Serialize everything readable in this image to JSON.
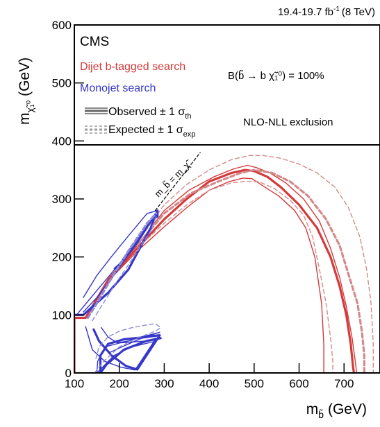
{
  "chart_data": {
    "type": "line",
    "lumi_label": "19.4-19.7 fb",
    "lumi_sup": "-1",
    "lumi_energy": "(8 TeV)",
    "experiment": "CMS",
    "xlabel_main": "m",
    "xlabel_sub": "b̃",
    "xlabel_unit": "(GeV)",
    "ylabel_main": "m",
    "ylabel_sub": "χ̃₁⁰",
    "ylabel_unit": "(GeV)",
    "xlim": [
      100,
      780
    ],
    "ylim": [
      0,
      600
    ],
    "xticks": [
      100,
      200,
      300,
      400,
      500,
      600,
      700
    ],
    "yticks": [
      0,
      100,
      200,
      300,
      400,
      500,
      600
    ],
    "grid": false,
    "legend": {
      "position": "top",
      "dijet_label": "Dijet b-tagged search",
      "monojet_label": "Monojet search",
      "observed_label": "Observed ± 1 σ",
      "observed_sub": "th",
      "expected_label": "Expected ± 1 σ",
      "expected_sub": "exp",
      "branching": "B(b̃ → b χ̃₁⁰) = 100%",
      "exclusion": "NLO-NLL exclusion",
      "diagonal": "m_b̃ = m_χ̃"
    },
    "colors": {
      "dijet": "#d33a3a",
      "monojet": "#3636c8",
      "dijet_light": "#d48a8a",
      "monojet_light": "#8c8cd8"
    },
    "series": [
      {
        "group": "dijet",
        "style": "observed",
        "x": [
          100,
          100,
          125,
          175,
          240,
          300,
          350,
          400,
          450,
          480,
          500,
          530,
          560,
          600,
          640,
          670,
          690,
          705,
          715,
          720,
          722
        ],
        "y": [
          0,
          95,
          95,
          160,
          215,
          265,
          300,
          330,
          345,
          350,
          348,
          338,
          320,
          290,
          250,
          200,
          150,
          100,
          50,
          10,
          0
        ]
      },
      {
        "group": "dijet",
        "style": "observed-band",
        "x": [
          175,
          240,
          300,
          355,
          410,
          455,
          485,
          505,
          535,
          570,
          610,
          645,
          670,
          690,
          705,
          718,
          725,
          728
        ],
        "y": [
          162,
          220,
          280,
          315,
          338,
          352,
          358,
          354,
          345,
          328,
          300,
          262,
          215,
          165,
          115,
          60,
          20,
          0
        ]
      },
      {
        "group": "dijet",
        "style": "observed-band",
        "x": [
          175,
          240,
          300,
          350,
          400,
          445,
          475,
          495,
          525,
          555,
          590,
          615,
          635,
          650,
          655,
          655
        ],
        "y": [
          158,
          210,
          252,
          285,
          315,
          330,
          336,
          335,
          320,
          305,
          280,
          250,
          200,
          120,
          50,
          0
        ]
      },
      {
        "group": "dijet",
        "style": "expected",
        "x": [
          240,
          300,
          360,
          420,
          470,
          500,
          540,
          580,
          620,
          660,
          690,
          710,
          730,
          740,
          745,
          745
        ],
        "y": [
          220,
          275,
          310,
          330,
          345,
          350,
          345,
          330,
          305,
          265,
          220,
          170,
          120,
          70,
          30,
          0
        ]
      },
      {
        "group": "dijet",
        "style": "expected-band",
        "x": [
          240,
          300,
          350,
          400,
          450,
          490,
          520,
          560,
          600,
          640,
          680,
          710,
          735,
          750,
          760,
          765,
          765
        ],
        "y": [
          225,
          290,
          325,
          350,
          368,
          375,
          375,
          370,
          360,
          345,
          320,
          285,
          235,
          180,
          120,
          50,
          0
        ]
      },
      {
        "group": "dijet",
        "style": "expected-band",
        "x": [
          240,
          300,
          350,
          400,
          450,
          480,
          510,
          545,
          580,
          610,
          630,
          645,
          660,
          670,
          675,
          675
        ],
        "y": [
          215,
          258,
          290,
          315,
          328,
          330,
          330,
          318,
          298,
          272,
          235,
          180,
          120,
          60,
          20,
          0
        ]
      },
      {
        "group": "monojet",
        "style": "observed",
        "x": [
          100,
          120,
          175,
          220,
          270,
          285,
          285,
          270,
          240,
          205,
          190
        ],
        "y": [
          100,
          100,
          138,
          178,
          250,
          280,
          270,
          262,
          225,
          190,
          180
        ]
      },
      {
        "group": "monojet",
        "style": "observed-band",
        "x": [
          105,
          150,
          200,
          245,
          280,
          285,
          262,
          222,
          182,
          150,
          120
        ],
        "y": [
          100,
          142,
          188,
          235,
          275,
          280,
          275,
          238,
          200,
          168,
          130
        ]
      },
      {
        "group": "monojet",
        "style": "observed-band",
        "x": [
          120,
          150,
          190,
          225,
          270,
          285
        ],
        "y": [
          105,
          130,
          170,
          210,
          260,
          275
        ]
      },
      {
        "group": "monojet",
        "style": "observed",
        "x": [
          143,
          155,
          183,
          215,
          240,
          290,
          262,
          210,
          175,
          158,
          158,
          172,
          210,
          260,
          292
        ],
        "y": [
          75,
          55,
          30,
          12,
          6,
          65,
          62,
          58,
          50,
          30,
          0,
          15,
          40,
          55,
          60
        ]
      },
      {
        "group": "monojet",
        "style": "observed-band",
        "x": [
          125,
          140,
          168,
          203,
          235,
          282,
          260,
          203,
          168,
          152,
          150,
          163,
          188,
          228,
          282
        ],
        "y": [
          80,
          40,
          20,
          10,
          5,
          60,
          55,
          52,
          45,
          20,
          0,
          10,
          30,
          45,
          55
        ]
      },
      {
        "group": "monojet",
        "style": "observed-band",
        "x": [
          160,
          175,
          195,
          220,
          250,
          290,
          250,
          215,
          192,
          178
        ],
        "y": [
          78,
          62,
          52,
          55,
          62,
          70,
          60,
          48,
          40,
          35
        ]
      },
      {
        "group": "monojet",
        "style": "expected",
        "x": [
          130,
          150,
          180,
          220,
          262,
          282
        ],
        "y": [
          95,
          120,
          160,
          210,
          258,
          275
        ]
      },
      {
        "group": "monojet",
        "style": "expected-band",
        "x": [
          140,
          158,
          190,
          232,
          270,
          282
        ],
        "y": [
          90,
          112,
          152,
          200,
          245,
          270
        ]
      },
      {
        "group": "monojet",
        "style": "expected-band",
        "x": [
          145,
          165,
          200,
          240,
          280,
          292,
          280,
          255,
          228,
          200,
          175,
          155,
          148
        ],
        "y": [
          0,
          20,
          45,
          60,
          72,
          78,
          85,
          82,
          78,
          72,
          62,
          45,
          25
        ]
      },
      {
        "group": "diagonal",
        "style": "diagonal",
        "x": [
          280,
          380
        ],
        "y": [
          280,
          380
        ]
      }
    ]
  }
}
